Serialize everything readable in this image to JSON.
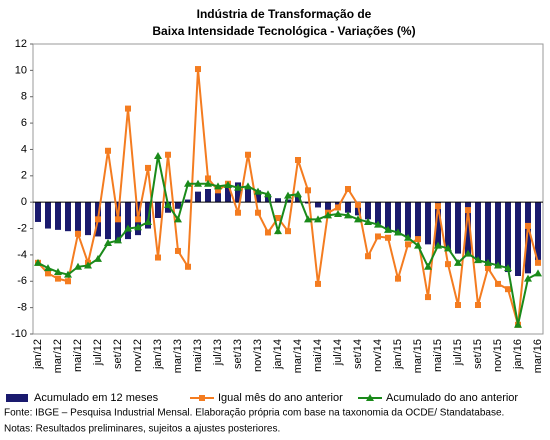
{
  "chart_data": {
    "type": "bar-line",
    "title": [
      "Indústria de Transformação de",
      "Baixa Intensidade Tecnológica - Variações (%)"
    ],
    "categories": [
      "jan/12",
      null,
      "mar/12",
      null,
      "mai/12",
      null,
      "jul/12",
      null,
      "set/12",
      null,
      "nov/12",
      null,
      "jan/13",
      null,
      "mar/13",
      null,
      "mai/13",
      null,
      "jul/13",
      null,
      "set/13",
      null,
      "nov/13",
      null,
      "jan/14",
      null,
      "mar/14",
      null,
      "mai/14",
      null,
      "jul/14",
      null,
      "set/14",
      null,
      "nov/14",
      null,
      "jan/15",
      null,
      "mar/15",
      null,
      "mai/15",
      null,
      "jul/15",
      null,
      "set/15",
      null,
      "nov/15",
      null,
      "jan/16",
      null,
      "mar/16"
    ],
    "series": [
      {
        "name": "Acumulado em 12 meses",
        "color": "#1a1a6e",
        "kind": "bar",
        "values": [
          -1.5,
          -2.0,
          -2.1,
          -2.2,
          -2.3,
          -2.5,
          -2.6,
          -2.8,
          -3.0,
          -2.8,
          -2.5,
          -2.0,
          -1.2,
          -0.8,
          -0.5,
          0.2,
          0.8,
          1.0,
          1.2,
          1.3,
          1.5,
          1.2,
          0.9,
          0.6,
          0.3,
          0.2,
          0.5,
          -0.1,
          -0.4,
          -0.6,
          -0.6,
          -0.8,
          -1.0,
          -1.3,
          -1.7,
          -2.1,
          -2.4,
          -2.7,
          -3.0,
          -3.2,
          -3.4,
          -3.7,
          -3.9,
          -4.1,
          -4.4,
          -4.7,
          -5.0,
          -5.3,
          -5.6,
          -5.4,
          -4.7
        ]
      },
      {
        "name": "Igual mês do ano anterior",
        "color": "#f47c20",
        "kind": "line",
        "marker": "square",
        "values": [
          -4.6,
          -5.4,
          -5.8,
          -6.0,
          -2.4,
          -4.6,
          -1.3,
          3.9,
          -1.3,
          7.1,
          -1.3,
          2.6,
          -4.2,
          3.6,
          -3.7,
          -4.9,
          10.1,
          1.8,
          0.9,
          1.4,
          -0.8,
          3.6,
          -0.8,
          -2.3,
          -1.2,
          -2.2,
          3.2,
          0.9,
          -6.2,
          -0.8,
          -0.4,
          1.0,
          -0.2,
          -4.1,
          -2.6,
          -2.7,
          -5.8,
          -3.2,
          -2.8,
          -7.2,
          -0.3,
          -4.7,
          -7.8,
          -0.6,
          -7.8,
          -5.0,
          -6.2,
          -6.6,
          -9.3,
          -1.8,
          -4.6
        ]
      },
      {
        "name": "Acumulado do ano anterior",
        "color": "#1a8a1a",
        "kind": "line",
        "marker": "triangle",
        "values": [
          -4.6,
          -5.0,
          -5.3,
          -5.5,
          -4.9,
          -4.8,
          -4.3,
          -3.1,
          -2.9,
          -2.0,
          -1.9,
          -1.5,
          3.5,
          -0.2,
          -1.3,
          1.4,
          1.4,
          1.4,
          1.2,
          1.3,
          1.1,
          1.2,
          0.8,
          0.6,
          -2.2,
          0.5,
          0.6,
          -1.3,
          -1.3,
          -1.0,
          -0.9,
          -1.0,
          -1.3,
          -1.5,
          -1.7,
          -2.1,
          -2.3,
          -2.7,
          -3.3,
          -4.9,
          -3.3,
          -3.5,
          -4.6,
          -3.9,
          -4.4,
          -4.6,
          -4.8,
          -5.0,
          -9.3,
          -5.8,
          -5.4
        ]
      }
    ],
    "ylim": [
      -10,
      12
    ],
    "yticks": [
      -10,
      -8,
      -6,
      -4,
      -2,
      0,
      2,
      4,
      6,
      8,
      10,
      12
    ],
    "source": "Fonte: IBGE – Pesquisa Industrial Mensal. Elaboração própria com base na taxonomia da OCDE/ Standatabase.",
    "notes": "Notas: Resultados preliminares, sujeitos a ajustes posteriores."
  }
}
